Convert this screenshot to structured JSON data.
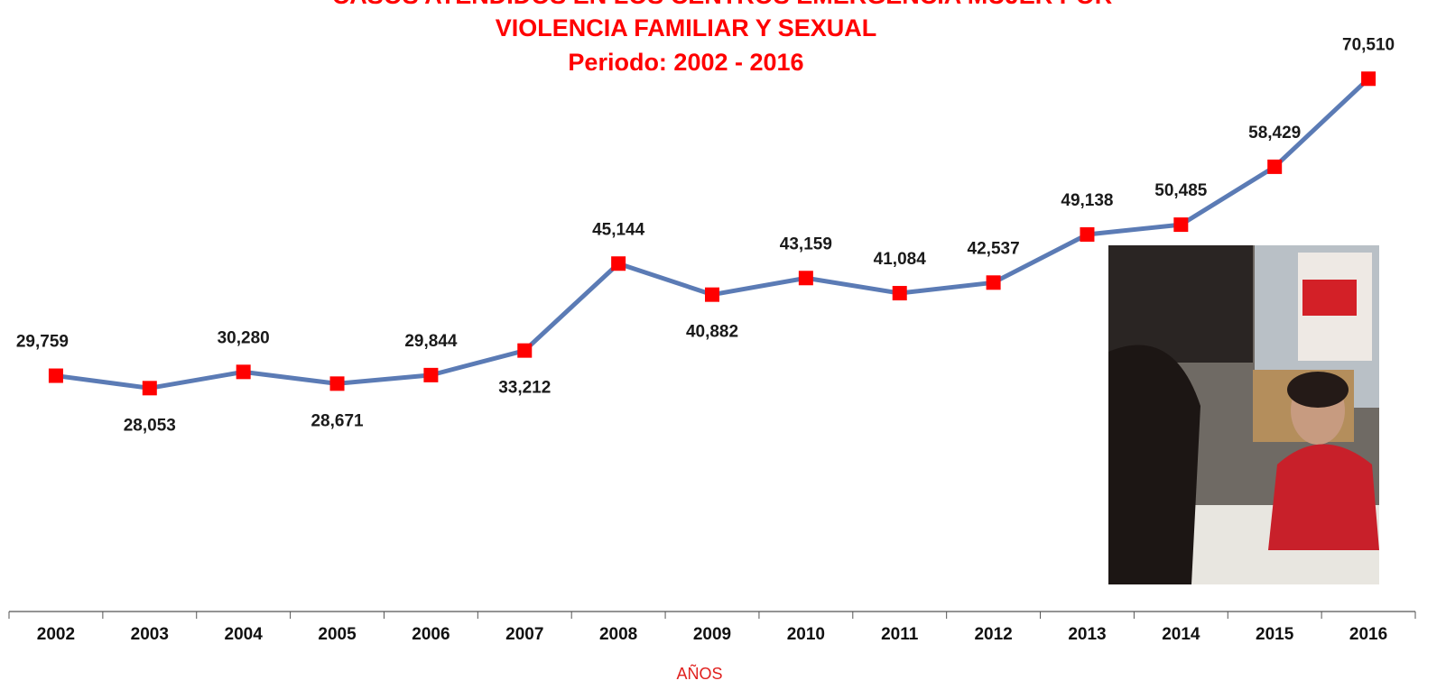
{
  "chart_data": {
    "type": "line",
    "title": [
      "CASOS ATENDIDOS EN LOS CENTROS EMERGENCIA MUJER POR",
      "VIOLENCIA FAMILIAR Y SEXUAL",
      "Periodo: 2002 - 2016"
    ],
    "x_label": "AÑOS",
    "categories": [
      "2002",
      "2003",
      "2004",
      "2005",
      "2006",
      "2007",
      "2008",
      "2009",
      "2010",
      "2011",
      "2012",
      "2013",
      "2014",
      "2015",
      "2016"
    ],
    "series": [
      {
        "color": "#5b7bb5",
        "marker_color": "#ff0000",
        "values": [
          29759,
          28053,
          30280,
          28671,
          29844,
          33212,
          45144,
          40882,
          43159,
          41084,
          42537,
          49138,
          50485,
          58429,
          70510
        ],
        "value_labels": [
          "29,759",
          "28,053",
          "30,280",
          "28,671",
          "29,844",
          "33,212",
          "45,144",
          "40,882",
          "43,159",
          "41,084",
          "42,537",
          "49,138",
          "50,485",
          "58,429",
          "70,510"
        ]
      }
    ]
  }
}
